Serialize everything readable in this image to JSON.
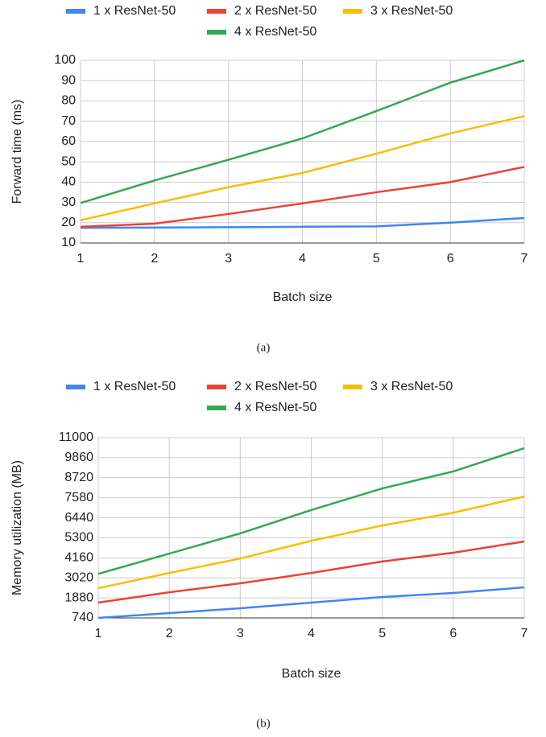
{
  "chart_data": [
    {
      "type": "line",
      "caption": "(a)",
      "x_label": "Batch size",
      "y_label": "Forward time (ms)",
      "x": [
        1,
        2,
        3,
        4,
        5,
        6,
        7
      ],
      "xlim": [
        1,
        7
      ],
      "xticks": [
        1,
        2,
        3,
        4,
        5,
        6,
        7
      ],
      "ylim": [
        10,
        100
      ],
      "yticks": [
        10,
        20,
        30,
        40,
        50,
        60,
        70,
        80,
        90,
        100
      ],
      "grid": true,
      "series": [
        {
          "name": "1 x ResNet-50",
          "color": "#4285f4",
          "values": [
            17.5,
            17.6,
            17.8,
            18,
            18.2,
            20,
            22.3
          ]
        },
        {
          "name": "2 x ResNet-50",
          "color": "#ea4335",
          "values": [
            18,
            19.5,
            24.3,
            29.5,
            35,
            40,
            47.5
          ]
        },
        {
          "name": "3 x ResNet-50",
          "color": "#fbbc04",
          "values": [
            21.2,
            29.5,
            37.5,
            44.5,
            54,
            64,
            72.5
          ]
        },
        {
          "name": "4 x ResNet-50",
          "color": "#34a853",
          "values": [
            29.7,
            40.8,
            51,
            61.5,
            75,
            89,
            100
          ]
        }
      ]
    },
    {
      "type": "line",
      "caption": "(b)",
      "x_label": "Batch size",
      "y_label": "Memory utilization (MB)",
      "x": [
        1,
        2,
        3,
        4,
        5,
        6,
        7
      ],
      "xlim": [
        1,
        7
      ],
      "xticks": [
        1,
        2,
        3,
        4,
        5,
        6,
        7
      ],
      "ylim": [
        740,
        11000
      ],
      "yticks": [
        740,
        1880,
        3020,
        4160,
        5300,
        6440,
        7580,
        8720,
        9860,
        11000
      ],
      "grid": true,
      "series": [
        {
          "name": "1 x ResNet-50",
          "color": "#4285f4",
          "values": [
            740,
            1015,
            1290,
            1610,
            1930,
            2160,
            2480
          ]
        },
        {
          "name": "2 x ResNet-50",
          "color": "#ea4335",
          "values": [
            1610,
            2200,
            2710,
            3300,
            3950,
            4450,
            5090
          ]
        },
        {
          "name": "3 x ResNet-50",
          "color": "#fbbc04",
          "values": [
            2430,
            3300,
            4120,
            5130,
            6000,
            6730,
            7650
          ]
        },
        {
          "name": "4 x ResNet-50",
          "color": "#34a853",
          "values": [
            3250,
            4400,
            5550,
            6880,
            8110,
            9080,
            10400
          ]
        }
      ]
    }
  ]
}
